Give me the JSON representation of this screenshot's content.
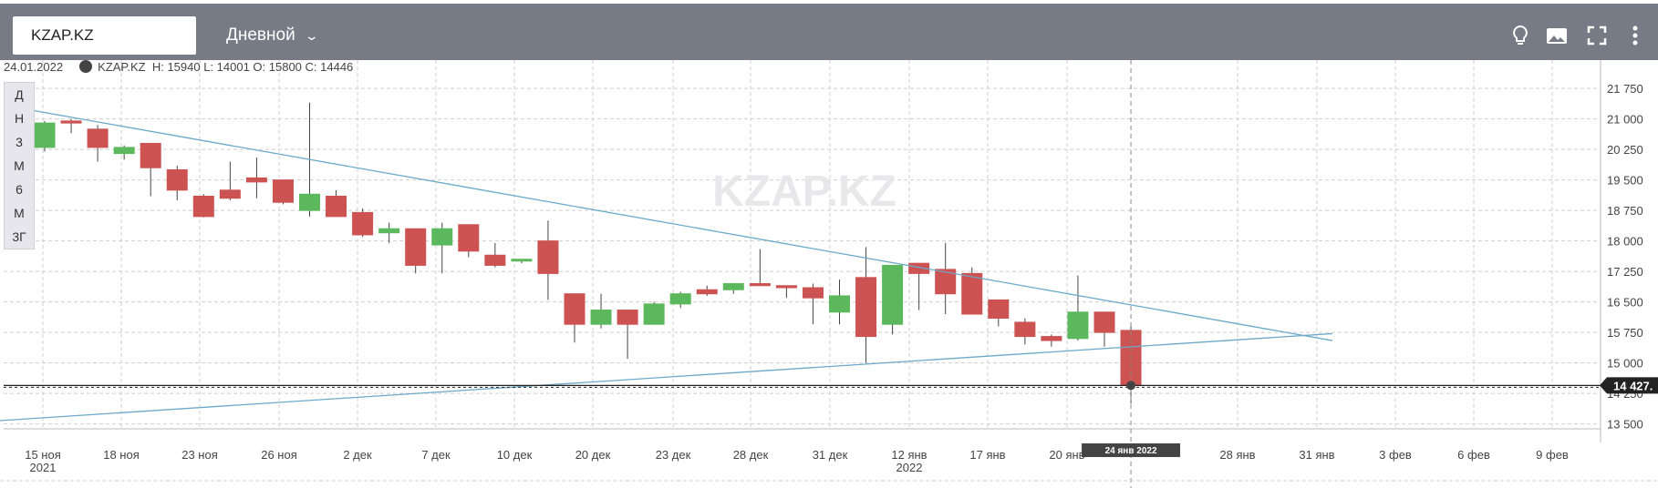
{
  "toolbar": {
    "symbol": "KZAP.KZ",
    "interval": "Дневной",
    "icons": [
      "lightbulb-icon",
      "image-icon",
      "fullscreen-icon",
      "more-vertical-icon"
    ]
  },
  "info": {
    "date": "24.01.2022",
    "symbol": "KZAP.KZ",
    "ohlc": "H: 15940 L: 14001 O: 15800 C: 14446"
  },
  "periods": [
    "Д",
    "Н",
    "3",
    "М",
    "6",
    "М",
    "3Г"
  ],
  "chart_data": {
    "type": "candlestick",
    "watermark": "KZAP.KZ",
    "y_ticks": [
      "21 750",
      "21 000",
      "20 250",
      "19 500",
      "18 750",
      "18 000",
      "17 250",
      "16 500",
      "15 750",
      "15 000",
      "14 250",
      "13 500"
    ],
    "ylim": [
      13200,
      22000
    ],
    "price_label": "14 427.",
    "last_price": 14446,
    "x_ticks": [
      {
        "label": "15 ноя",
        "sub": "2021"
      },
      {
        "label": "18 ноя"
      },
      {
        "label": "23 ноя"
      },
      {
        "label": "26 ноя"
      },
      {
        "label": "2 дек"
      },
      {
        "label": "7 дек"
      },
      {
        "label": "10 дек"
      },
      {
        "label": "20 дек"
      },
      {
        "label": "23 дек"
      },
      {
        "label": "28 дек"
      },
      {
        "label": "31 дек"
      },
      {
        "label": "12 янв",
        "sub": "2022"
      },
      {
        "label": "17 янв"
      },
      {
        "label": "20 янв"
      },
      {
        "label": "28 янв"
      },
      {
        "label": "31 янв"
      },
      {
        "label": "3 фев"
      },
      {
        "label": "6 фев"
      },
      {
        "label": "9 фев"
      }
    ],
    "crosshair_date_label": "24 янв  2022",
    "candles": [
      {
        "o": 20300,
        "h": 20950,
        "l": 20200,
        "c": 20900
      },
      {
        "o": 20950,
        "h": 21000,
        "l": 20650,
        "c": 20900
      },
      {
        "o": 20750,
        "h": 20850,
        "l": 19950,
        "c": 20300
      },
      {
        "o": 20150,
        "h": 20350,
        "l": 20000,
        "c": 20300
      },
      {
        "o": 20400,
        "h": 20400,
        "l": 19100,
        "c": 19800
      },
      {
        "o": 19750,
        "h": 19850,
        "l": 19000,
        "c": 19250
      },
      {
        "o": 19100,
        "h": 19150,
        "l": 18580,
        "c": 18600
      },
      {
        "o": 19250,
        "h": 19950,
        "l": 19000,
        "c": 19050
      },
      {
        "o": 19550,
        "h": 20050,
        "l": 19050,
        "c": 19450
      },
      {
        "o": 19500,
        "h": 19500,
        "l": 18900,
        "c": 18950
      },
      {
        "o": 18750,
        "h": 21400,
        "l": 18600,
        "c": 19150
      },
      {
        "o": 19100,
        "h": 19250,
        "l": 18600,
        "c": 18600
      },
      {
        "o": 18700,
        "h": 18800,
        "l": 18100,
        "c": 18150
      },
      {
        "o": 18200,
        "h": 18450,
        "l": 17950,
        "c": 18300
      },
      {
        "o": 18300,
        "h": 18300,
        "l": 17200,
        "c": 17400
      },
      {
        "o": 17900,
        "h": 18450,
        "l": 17200,
        "c": 18300
      },
      {
        "o": 18400,
        "h": 18400,
        "l": 17600,
        "c": 17750
      },
      {
        "o": 17650,
        "h": 17950,
        "l": 17350,
        "c": 17400
      },
      {
        "o": 17550,
        "h": 17550,
        "l": 17450,
        "c": 17550
      },
      {
        "o": 18000,
        "h": 18500,
        "l": 16550,
        "c": 17200
      },
      {
        "o": 16700,
        "h": 16700,
        "l": 15500,
        "c": 15950
      },
      {
        "o": 15950,
        "h": 16700,
        "l": 15850,
        "c": 16300
      },
      {
        "o": 16300,
        "h": 16300,
        "l": 15100,
        "c": 15950
      },
      {
        "o": 15950,
        "h": 16500,
        "l": 15950,
        "c": 16450
      },
      {
        "o": 16450,
        "h": 16750,
        "l": 16350,
        "c": 16700
      },
      {
        "o": 16800,
        "h": 16900,
        "l": 16650,
        "c": 16700
      },
      {
        "o": 16800,
        "h": 16950,
        "l": 16700,
        "c": 16950
      },
      {
        "o": 16950,
        "h": 17800,
        "l": 16900,
        "c": 16900
      },
      {
        "o": 16900,
        "h": 16900,
        "l": 16600,
        "c": 16850
      },
      {
        "o": 16850,
        "h": 16950,
        "l": 15950,
        "c": 16600
      },
      {
        "o": 16250,
        "h": 17050,
        "l": 15950,
        "c": 16650
      },
      {
        "o": 17100,
        "h": 17850,
        "l": 15000,
        "c": 15650
      },
      {
        "o": 15950,
        "h": 17400,
        "l": 15700,
        "c": 17400
      },
      {
        "o": 17450,
        "h": 17400,
        "l": 16300,
        "c": 17200
      },
      {
        "o": 17300,
        "h": 17950,
        "l": 16200,
        "c": 16700
      },
      {
        "o": 17200,
        "h": 17350,
        "l": 16200,
        "c": 16200
      },
      {
        "o": 16550,
        "h": 16550,
        "l": 15900,
        "c": 16100
      },
      {
        "o": 16000,
        "h": 16100,
        "l": 15450,
        "c": 15650
      },
      {
        "o": 15650,
        "h": 15700,
        "l": 15400,
        "c": 15550
      },
      {
        "o": 15600,
        "h": 17150,
        "l": 15550,
        "c": 16250
      },
      {
        "o": 16250,
        "h": 16250,
        "l": 15400,
        "c": 15750
      },
      {
        "o": 15800,
        "h": 15940,
        "l": 14001,
        "c": 14446
      }
    ],
    "trendlines": [
      {
        "x0": -0.8,
        "y0": 21250,
        "x1": 48.6,
        "y1": 15550
      },
      {
        "x0": -2.4,
        "y0": 13550,
        "x1": 48.6,
        "y1": 15720
      }
    ],
    "grid": true,
    "colors": {
      "up": "#5cb85c",
      "down": "#cd5252",
      "trend": "#6ba9c9",
      "grid": "#cfcfcf"
    }
  }
}
